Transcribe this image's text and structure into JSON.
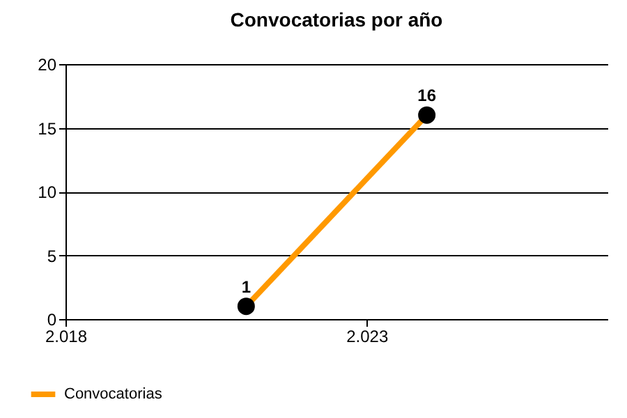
{
  "chart_data": {
    "type": "line",
    "title": "Convocatorias por año",
    "x": [
      2021,
      2024
    ],
    "series": [
      {
        "name": "Convocatorias",
        "color": "#ff9900",
        "values": [
          1,
          16
        ]
      }
    ],
    "xlim": [
      2018,
      2027
    ],
    "xticks": [
      {
        "value": 2018,
        "label": "2.018"
      },
      {
        "value": 2023,
        "label": "2.023"
      }
    ],
    "ylim": [
      0,
      20
    ],
    "yticks": [
      0,
      5,
      10,
      15,
      20
    ],
    "grid": "y",
    "legend": "bottom left",
    "marker": "circle",
    "line_style": "solid",
    "data_labels": true
  }
}
